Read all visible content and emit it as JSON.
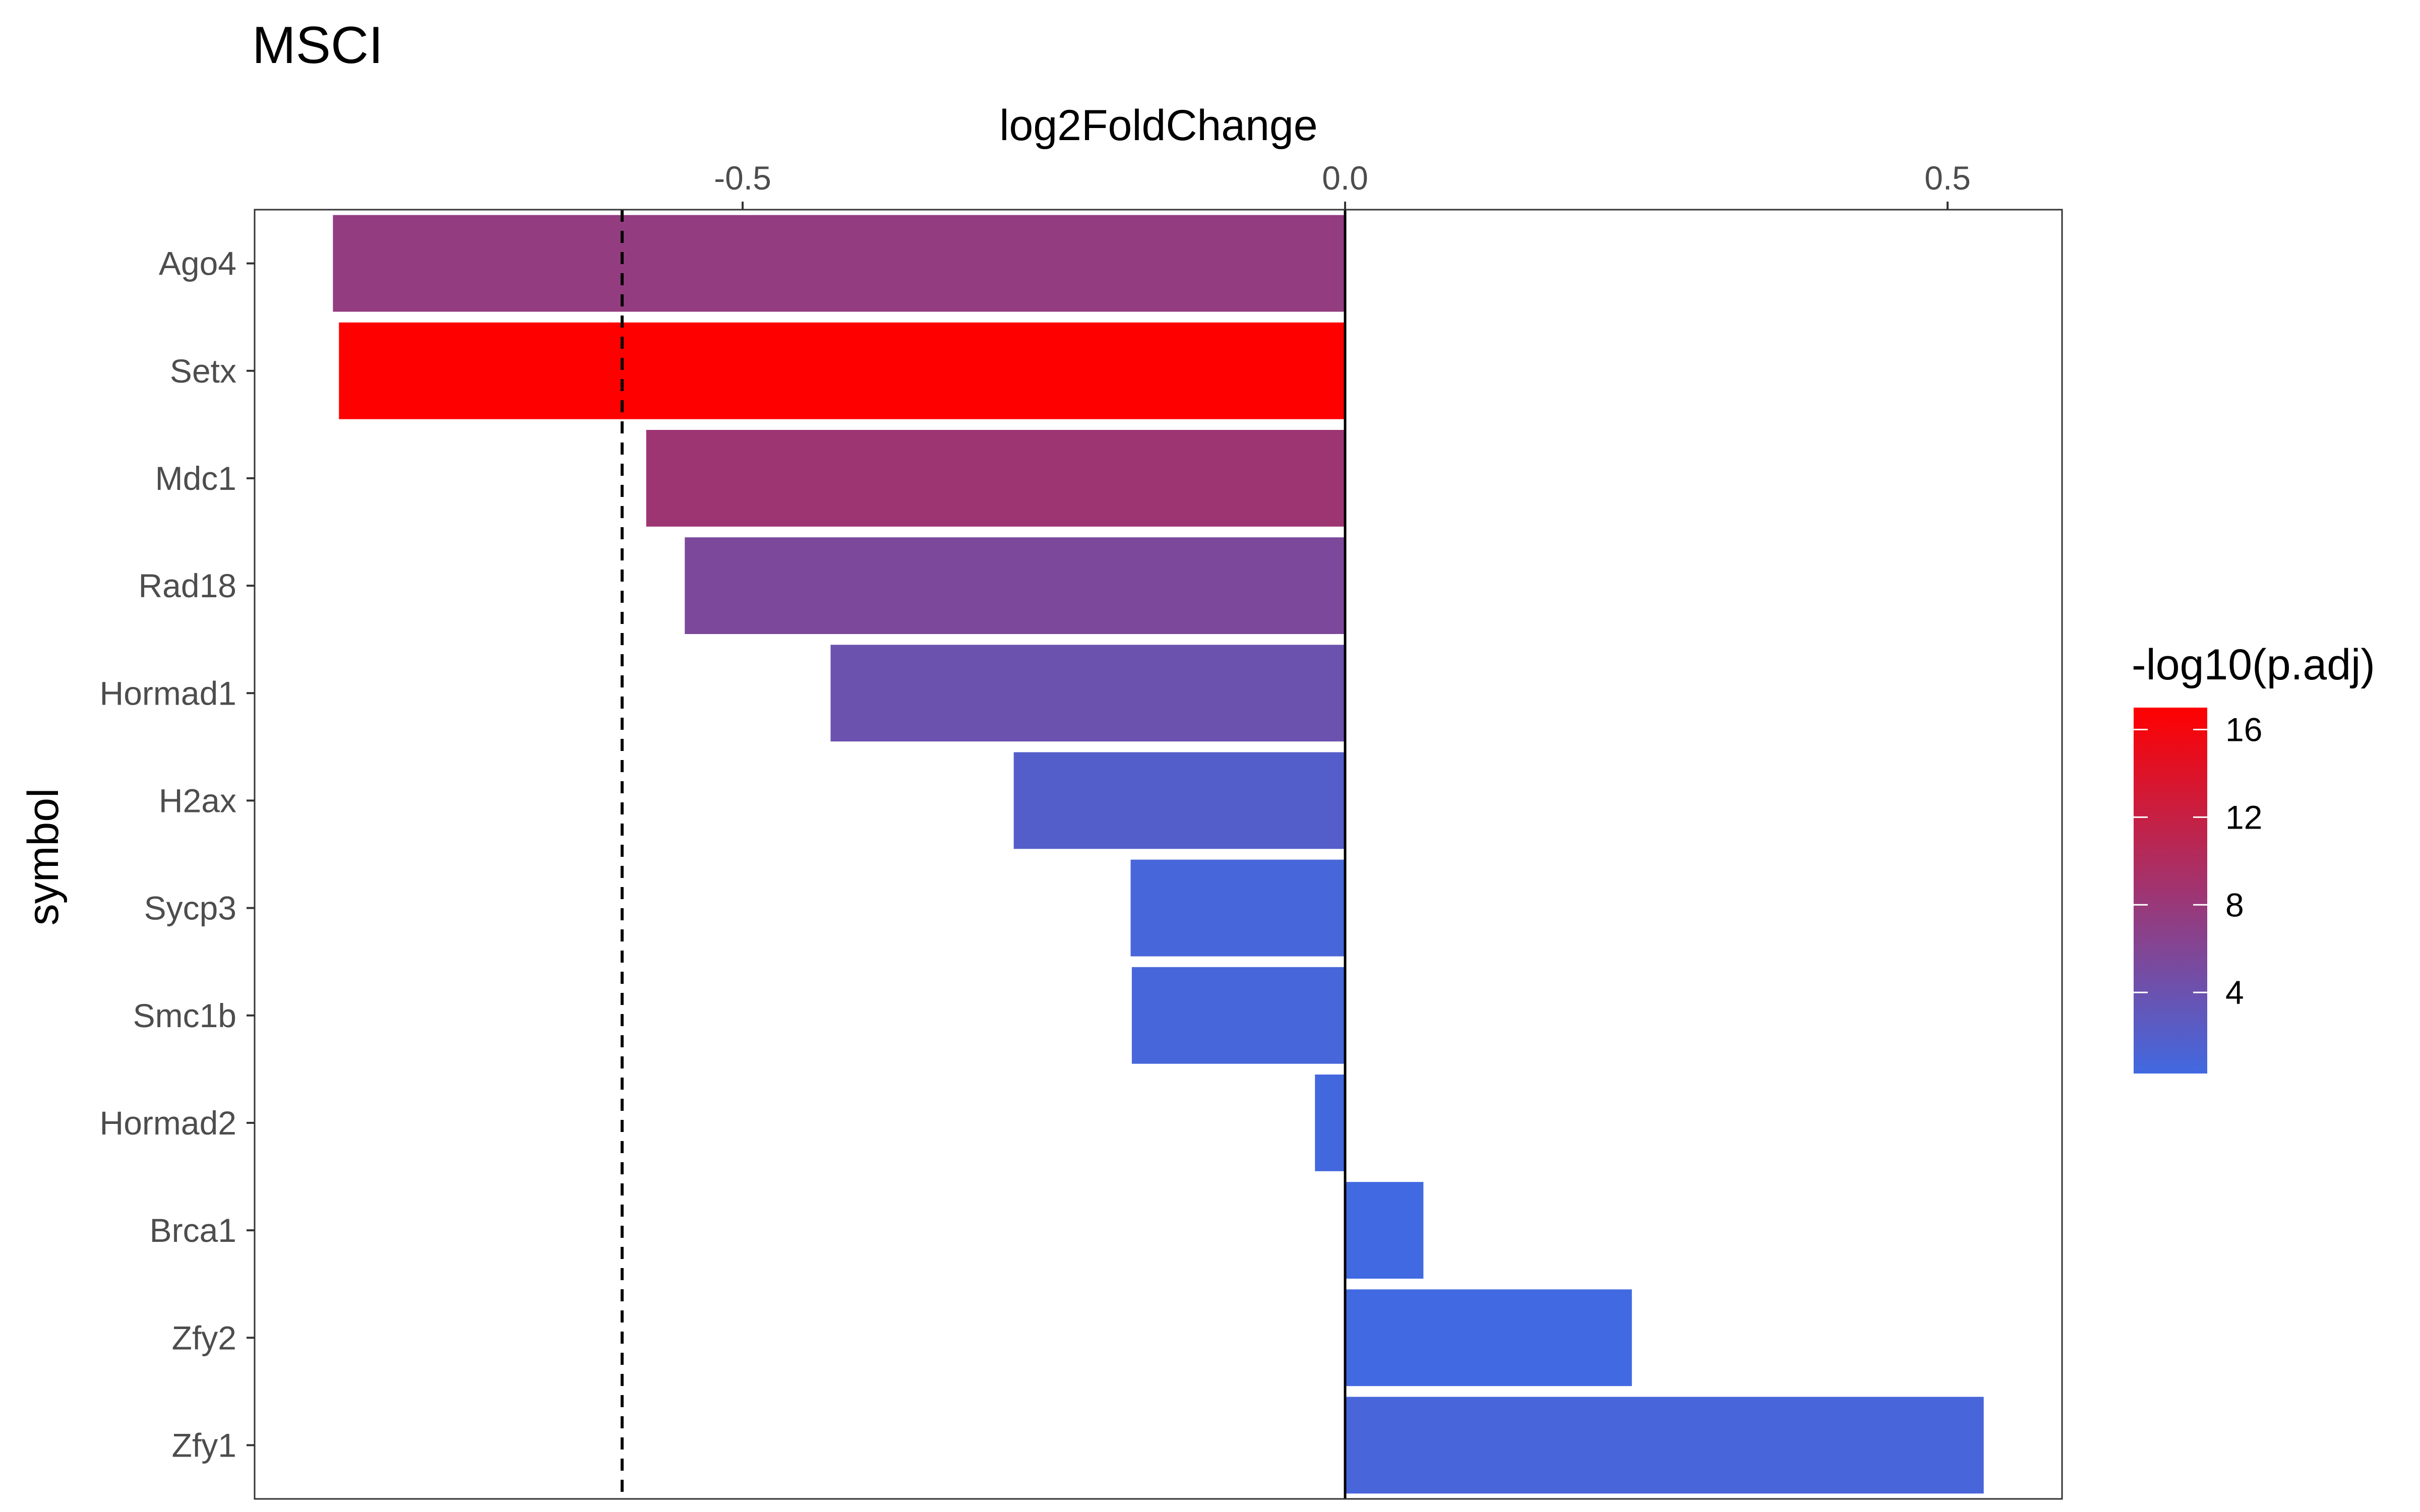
{
  "chart_data": {
    "type": "bar",
    "orientation": "horizontal",
    "title": "MSCI",
    "xlabel": "log2FoldChange",
    "ylabel": "symbol",
    "x_axis_position": "top",
    "xlim": [
      -0.905,
      0.595
    ],
    "x_ticks": [
      {
        "value": -0.5,
        "label": "-0.5"
      },
      {
        "value": 0.0,
        "label": "0.0"
      },
      {
        "value": 0.5,
        "label": "0.5"
      }
    ],
    "reference_lines": [
      {
        "value": -0.6,
        "style": "dashed"
      },
      {
        "value": 0.0,
        "style": "solid"
      }
    ],
    "grid": false,
    "categories": [
      "Ago4",
      "Setx",
      "Mdc1",
      "Rad18",
      "Hormad1",
      "H2ax",
      "Sycp3",
      "Smc1b",
      "Hormad2",
      "Brca1",
      "Zfy2",
      "Zfy1"
    ],
    "values": [
      -0.84,
      -0.835,
      -0.58,
      -0.548,
      -0.427,
      -0.275,
      -0.178,
      -0.177,
      -0.025,
      0.065,
      0.238,
      0.53
    ],
    "color_values": [
      7.5,
      17.0,
      8.5,
      5.5,
      4.0,
      2.0,
      0.8,
      0.8,
      0.5,
      0.3,
      0.3,
      0.9
    ],
    "color_scale": {
      "title": "-log10(p.adj)",
      "low_color": "#4169E1",
      "high_color": "#FF0000",
      "min": 0.3,
      "max": 17.0,
      "ticks": [
        {
          "value": 4,
          "label": "4"
        },
        {
          "value": 8,
          "label": "8"
        },
        {
          "value": 12,
          "label": "12"
        },
        {
          "value": 16,
          "label": "16"
        }
      ]
    },
    "legend_placement": "right"
  }
}
